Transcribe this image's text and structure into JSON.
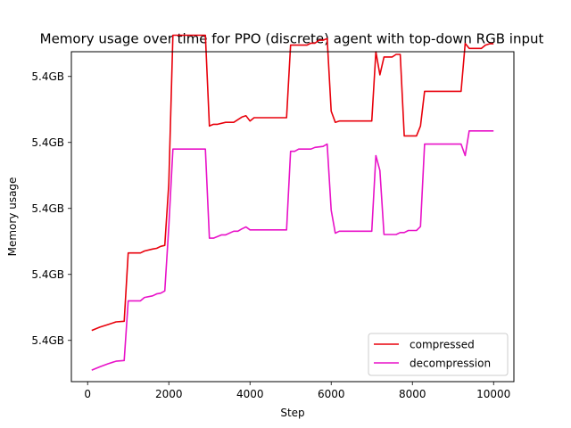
{
  "chart_data": {
    "type": "line",
    "title": "Memory usage over time for PPO (discrete) agent with top-down RGB input",
    "xlabel": "Step",
    "ylabel": "Memory usage",
    "xlim": [
      -400,
      10500
    ],
    "ylim": [
      0,
      100
    ],
    "xticks": [
      0,
      2000,
      4000,
      6000,
      8000,
      10000
    ],
    "yticks": [
      {
        "value": 12.5,
        "label": "5.4GB"
      },
      {
        "value": 32.5,
        "label": "5.4GB"
      },
      {
        "value": 52.5,
        "label": "5.4GB"
      },
      {
        "value": 72.5,
        "label": "5.4GB"
      },
      {
        "value": 92.5,
        "label": "5.4GB"
      }
    ],
    "grid": false,
    "legend": "lower-right",
    "series": [
      {
        "name": "compressed",
        "color": "#e8000b",
        "points": [
          [
            100,
            15.5
          ],
          [
            300,
            16.5
          ],
          [
            500,
            17.3
          ],
          [
            700,
            18.1
          ],
          [
            900,
            18.3
          ],
          [
            1000,
            39
          ],
          [
            1300,
            39
          ],
          [
            1400,
            39.6
          ],
          [
            1600,
            40.2
          ],
          [
            1700,
            40.4
          ],
          [
            1800,
            41
          ],
          [
            1900,
            41.3
          ],
          [
            2000,
            60
          ],
          [
            2100,
            105
          ],
          [
            2900,
            105
          ],
          [
            3000,
            77.5
          ],
          [
            3100,
            78
          ],
          [
            3200,
            78
          ],
          [
            3400,
            78.6
          ],
          [
            3600,
            78.6
          ],
          [
            3800,
            80.2
          ],
          [
            3900,
            80.6
          ],
          [
            4000,
            79
          ],
          [
            4100,
            80
          ],
          [
            4900,
            80
          ],
          [
            5000,
            102
          ],
          [
            5400,
            102
          ],
          [
            5500,
            102.6
          ],
          [
            5600,
            102.6
          ],
          [
            5700,
            103.5
          ],
          [
            5800,
            103.5
          ],
          [
            5900,
            104
          ],
          [
            6000,
            82
          ],
          [
            6100,
            78.6
          ],
          [
            6200,
            79
          ],
          [
            7000,
            79
          ],
          [
            7100,
            100
          ],
          [
            7200,
            93
          ],
          [
            7300,
            98.4
          ],
          [
            7500,
            98.4
          ],
          [
            7600,
            99.2
          ],
          [
            7700,
            99.2
          ],
          [
            7800,
            74.5
          ],
          [
            8100,
            74.5
          ],
          [
            8200,
            77.5
          ],
          [
            8300,
            88
          ],
          [
            9200,
            88
          ],
          [
            9300,
            102.5
          ],
          [
            9400,
            101
          ],
          [
            9700,
            101
          ],
          [
            9800,
            102
          ],
          [
            9900,
            102.4
          ],
          [
            10000,
            102.4
          ]
        ]
      },
      {
        "name": "decompression",
        "color": "#e812c8",
        "points": [
          [
            100,
            3.5
          ],
          [
            300,
            4.5
          ],
          [
            500,
            5.4
          ],
          [
            700,
            6.2
          ],
          [
            900,
            6.4
          ],
          [
            1000,
            24.5
          ],
          [
            1300,
            24.5
          ],
          [
            1400,
            25.5
          ],
          [
            1600,
            26
          ],
          [
            1700,
            26.6
          ],
          [
            1800,
            26.8
          ],
          [
            1900,
            27.5
          ],
          [
            2000,
            47
          ],
          [
            2100,
            70.5
          ],
          [
            2900,
            70.5
          ],
          [
            3000,
            43.5
          ],
          [
            3100,
            43.5
          ],
          [
            3300,
            44.5
          ],
          [
            3400,
            44.5
          ],
          [
            3600,
            45.6
          ],
          [
            3700,
            45.6
          ],
          [
            3800,
            46.3
          ],
          [
            3900,
            46.9
          ],
          [
            4000,
            46
          ],
          [
            4900,
            46
          ],
          [
            5000,
            69.8
          ],
          [
            5100,
            69.8
          ],
          [
            5200,
            70.5
          ],
          [
            5500,
            70.5
          ],
          [
            5600,
            71
          ],
          [
            5800,
            71.3
          ],
          [
            5900,
            72
          ],
          [
            6000,
            52
          ],
          [
            6100,
            45
          ],
          [
            6200,
            45.6
          ],
          [
            7000,
            45.6
          ],
          [
            7100,
            68.5
          ],
          [
            7200,
            64
          ],
          [
            7300,
            44.6
          ],
          [
            7600,
            44.6
          ],
          [
            7700,
            45.2
          ],
          [
            7800,
            45.2
          ],
          [
            7900,
            45.8
          ],
          [
            8100,
            45.8
          ],
          [
            8200,
            47
          ],
          [
            8300,
            72
          ],
          [
            9200,
            72
          ],
          [
            9300,
            68.5
          ],
          [
            9400,
            76
          ],
          [
            9900,
            76
          ],
          [
            10000,
            76
          ]
        ]
      }
    ]
  }
}
